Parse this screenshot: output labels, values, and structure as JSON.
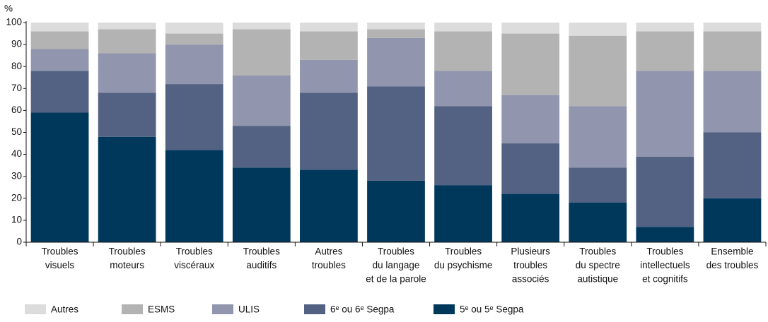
{
  "chart_data": {
    "type": "stacked_bar",
    "y_label": "%",
    "categories": [
      [
        "Troubles",
        "visuels"
      ],
      [
        "Troubles",
        "moteurs"
      ],
      [
        "Troubles",
        "viscéraux"
      ],
      [
        "Troubles",
        "auditifs"
      ],
      [
        "Autres",
        "troubles"
      ],
      [
        "Troubles",
        "du langage",
        "et de la parole"
      ],
      [
        "Troubles",
        "du psychisme"
      ],
      [
        "Plusieurs",
        "troubles",
        "associés"
      ],
      [
        "Troubles",
        "du spectre",
        "autistique"
      ],
      [
        "Troubles",
        "intellectuels",
        "et cognitifs"
      ],
      [
        "Ensemble",
        "des troubles"
      ]
    ],
    "series": [
      {
        "name": "Autres",
        "color": "#dcdcdc",
        "values": [
          4,
          3,
          5,
          3,
          4,
          3,
          4,
          5,
          6,
          4,
          4
        ]
      },
      {
        "name": "ESMS",
        "color": "#b3b3b3",
        "values": [
          8,
          11,
          5,
          21,
          13,
          4,
          18,
          28,
          32,
          18,
          18
        ]
      },
      {
        "name": "ULIS",
        "color": "#9195ad",
        "values": [
          10,
          18,
          18,
          23,
          15,
          22,
          16,
          22,
          28,
          39,
          28
        ]
      },
      {
        "name": "6ᵉ ou 6ᵉ Segpa",
        "color": "#536283",
        "values": [
          19,
          20,
          30,
          19,
          35,
          43,
          36,
          23,
          16,
          32,
          30
        ]
      },
      {
        "name": "5ᵉ ou 5ᵉ Segpa",
        "color": "#00385c",
        "values": [
          59,
          48,
          42,
          34,
          33,
          28,
          26,
          22,
          18,
          7,
          20
        ]
      }
    ],
    "ylim": [
      0,
      100
    ],
    "yticks": [
      0,
      10,
      20,
      30,
      40,
      50,
      60,
      70,
      80,
      90,
      100
    ]
  }
}
